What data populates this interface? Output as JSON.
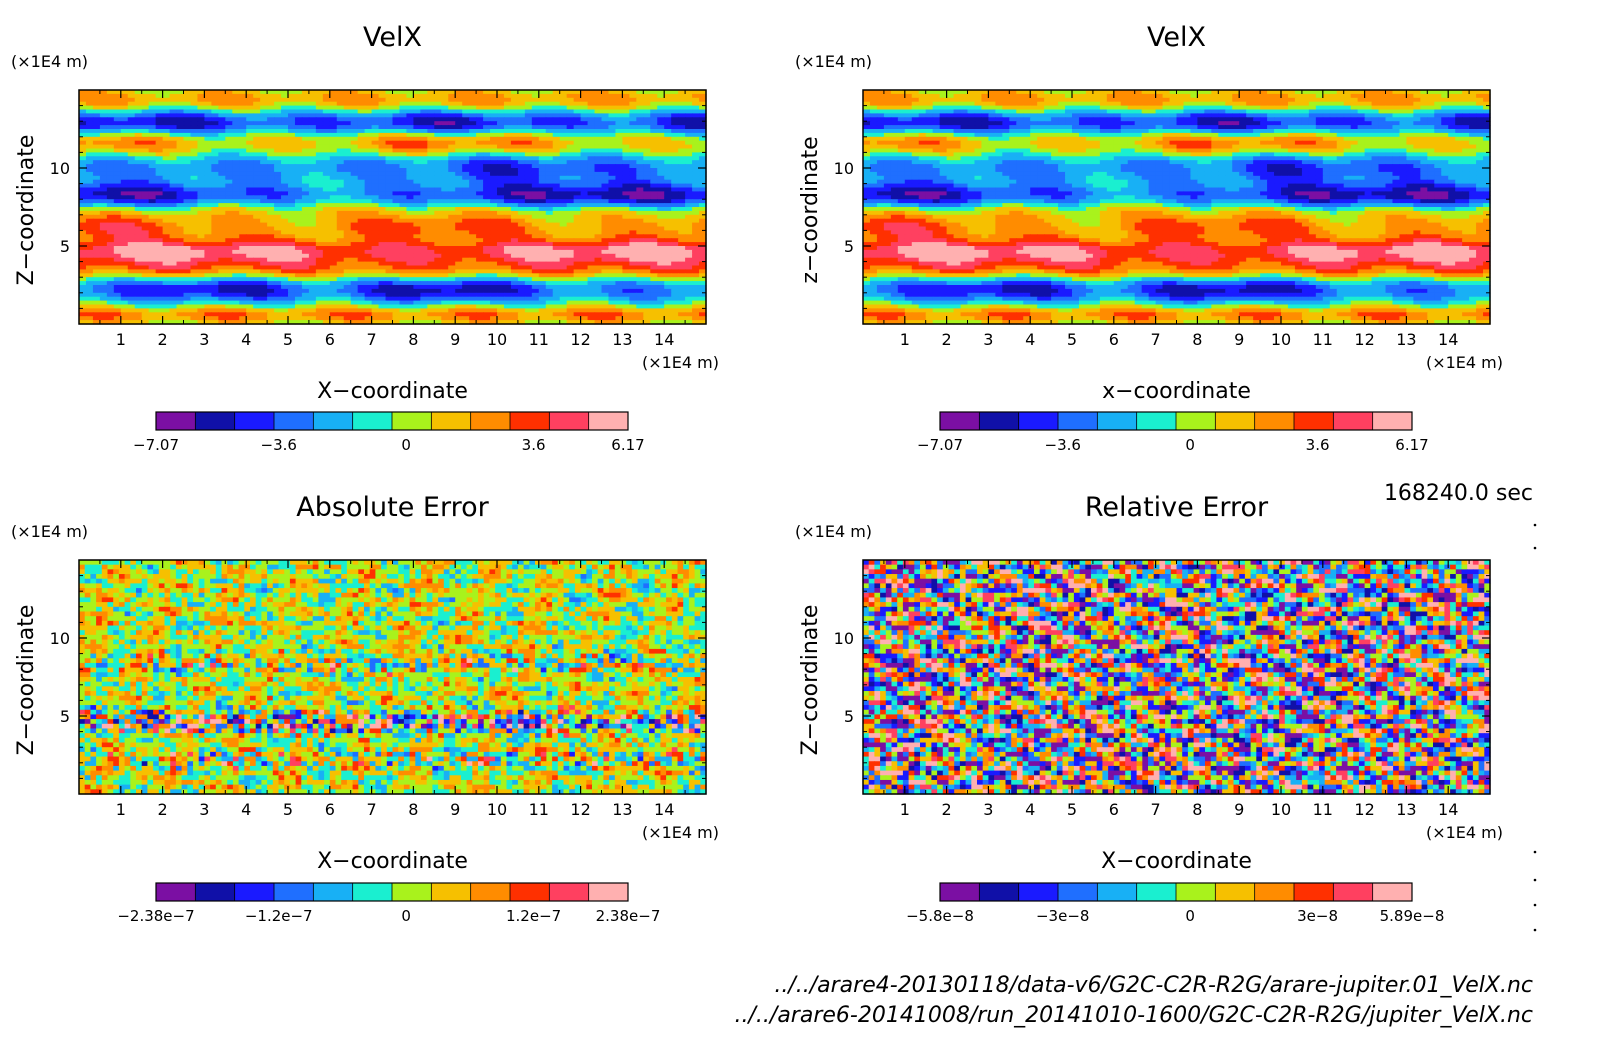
{
  "time_label": "168240.0 sec",
  "file_paths": [
    "../../arare4-20130118/data-v6/G2C-C2R-R2G/arare-jupiter.01_VelX.nc",
    "../../arare6-20141008/run_20141010-1600/G2C-C2R-R2G/jupiter_VelX.nc"
  ],
  "colormap": [
    "#7b0fa3",
    "#1010a8",
    "#1a1aff",
    "#1f6fff",
    "#18b0f5",
    "#1aefd0",
    "#a9f21c",
    "#f6c000",
    "#ff8c00",
    "#ff3000",
    "#ff4060",
    "#ffb0b0"
  ],
  "chart_data": [
    {
      "type": "heatmap",
      "title": "VelX",
      "xlabel": "X−coordinate",
      "ylabel": "Z−coordinate",
      "x_unit": "(×1E4 m)",
      "y_unit": "(×1E4 m)",
      "xlim": [
        0,
        15
      ],
      "ylim": [
        0,
        15
      ],
      "x_ticks": [
        "1",
        "2",
        "3",
        "4",
        "5",
        "6",
        "7",
        "8",
        "9",
        "10",
        "11",
        "12",
        "13",
        "14"
      ],
      "y_ticks": [
        "5",
        "10"
      ],
      "colorbar": {
        "ticks": [
          "−7.07",
          "−3.6",
          "0",
          "3.6",
          "6.17"
        ],
        "min": -7.07,
        "max": 6.17
      },
      "pattern": "bands"
    },
    {
      "type": "heatmap",
      "title": "VelX",
      "xlabel": "x−coordinate",
      "ylabel": "z−coordinate",
      "x_unit": "(×1E4 m)",
      "y_unit": "(×1E4 m)",
      "xlim": [
        0,
        15
      ],
      "ylim": [
        0,
        15
      ],
      "x_ticks": [
        "1",
        "2",
        "3",
        "4",
        "5",
        "6",
        "7",
        "8",
        "9",
        "10",
        "11",
        "12",
        "13",
        "14"
      ],
      "y_ticks": [
        "5",
        "10"
      ],
      "colorbar": {
        "ticks": [
          "−7.07",
          "−3.6",
          "0",
          "3.6",
          "6.17"
        ],
        "min": -7.07,
        "max": 6.17
      },
      "pattern": "bands"
    },
    {
      "type": "heatmap",
      "title": "Absolute Error",
      "xlabel": "X−coordinate",
      "ylabel": "Z−coordinate",
      "x_unit": "(×1E4 m)",
      "y_unit": "(×1E4 m)",
      "xlim": [
        0,
        15
      ],
      "ylim": [
        0,
        15
      ],
      "x_ticks": [
        "1",
        "2",
        "3",
        "4",
        "5",
        "6",
        "7",
        "8",
        "9",
        "10",
        "11",
        "12",
        "13",
        "14"
      ],
      "y_ticks": [
        "5",
        "10"
      ],
      "colorbar": {
        "ticks": [
          "−2.38e−7",
          "−1.2e−7",
          "0",
          "1.2e−7",
          "2.38e−7"
        ],
        "min": -2.38e-07,
        "max": 2.38e-07
      },
      "pattern": "abs_error"
    },
    {
      "type": "heatmap",
      "title": "Relative Error",
      "xlabel": "X−coordinate",
      "ylabel": "Z−coordinate",
      "x_unit": "(×1E4 m)",
      "y_unit": "(×1E4 m)",
      "xlim": [
        0,
        15
      ],
      "ylim": [
        0,
        15
      ],
      "x_ticks": [
        "1",
        "2",
        "3",
        "4",
        "5",
        "6",
        "7",
        "8",
        "9",
        "10",
        "11",
        "12",
        "13",
        "14"
      ],
      "y_ticks": [
        "5",
        "10"
      ],
      "colorbar": {
        "ticks": [
          "−5.8e−8",
          "−3e−8",
          "0",
          "3e−8",
          "5.89e−8"
        ],
        "min": -5.8e-08,
        "max": 5.89e-08
      },
      "pattern": "rel_error"
    }
  ]
}
